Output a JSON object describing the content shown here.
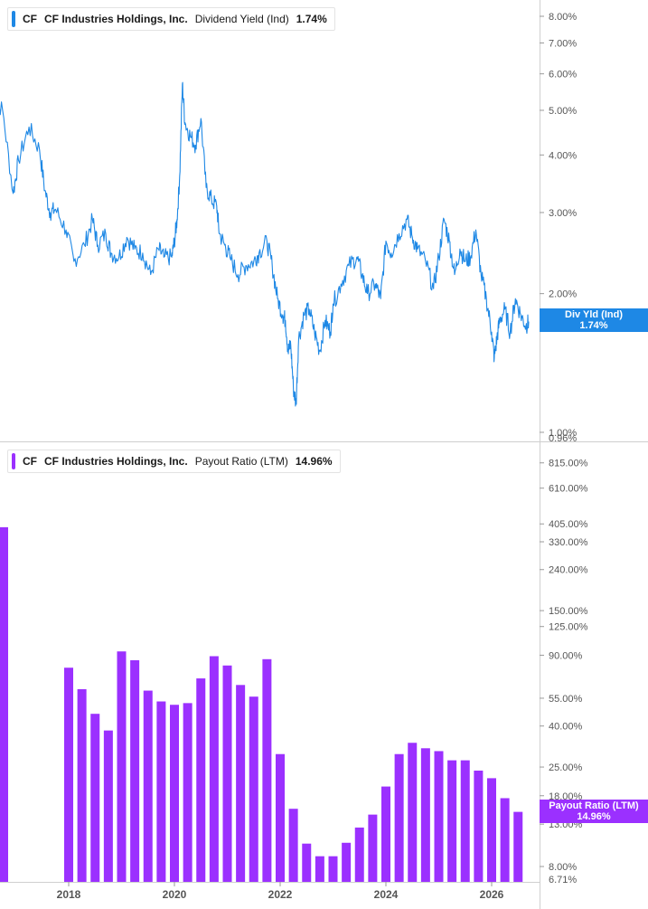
{
  "colors": {
    "blue": "#1e88e5",
    "purple": "#9b30ff",
    "grid": "#dcdcdc",
    "axis_text": "#555555"
  },
  "legend_top": {
    "ticker": "CF",
    "company": "CF Industries Holdings, Inc.",
    "metric": "Dividend Yield (Ind)",
    "value": "1.74%"
  },
  "legend_bottom": {
    "ticker": "CF",
    "company": "CF Industries Holdings, Inc.",
    "metric": "Payout Ratio (LTM)",
    "value": "14.96%"
  },
  "tag_top": {
    "label": "Div Yld (Ind)",
    "value": "1.74%"
  },
  "tag_bottom": {
    "label": "Payout Ratio (LTM)",
    "value": "14.96%"
  },
  "chart_data": [
    {
      "type": "line",
      "scale": "log",
      "series": [
        {
          "name": "Dividend Yield (Ind)",
          "color": "#1e88e5",
          "x": [
            2016.55,
            2016.75,
            2016.95,
            2017.05,
            2017.25,
            2017.45,
            2017.55,
            2017.65,
            2017.75,
            2017.95,
            2018.1,
            2018.3,
            2018.45,
            2018.55,
            2018.7,
            2018.8,
            2018.95,
            2019.1,
            2019.25,
            2019.4,
            2019.55,
            2019.7,
            2019.8,
            2019.95,
            2020.0,
            2020.05,
            2020.1,
            2020.15,
            2020.2,
            2020.3,
            2020.4,
            2020.5,
            2020.6,
            2020.7,
            2020.8,
            2020.85,
            2020.95,
            2021.05,
            2021.2,
            2021.35,
            2021.5,
            2021.6,
            2021.75,
            2021.85,
            2021.95,
            2022.05,
            2022.1,
            2022.15,
            2022.2,
            2022.25,
            2022.3,
            2022.35,
            2022.45,
            2022.55,
            2022.65,
            2022.75,
            2022.85,
            2022.95,
            2023.0,
            2023.15,
            2023.3,
            2023.45,
            2023.55,
            2023.65,
            2023.8,
            2023.9,
            2024.0,
            2024.1,
            2024.25,
            2024.4,
            2024.5,
            2024.6,
            2024.75,
            2024.9,
            2025.0,
            2025.1,
            2025.2,
            2025.3,
            2025.4,
            2025.5,
            2025.6,
            2025.7,
            2025.8,
            2025.9,
            2026.0,
            2026.05,
            2026.1,
            2026.15,
            2026.25,
            2026.35,
            2026.45,
            2026.55,
            2026.65,
            2026.7
          ],
          "values": [
            5.4,
            5.0,
            3.3,
            3.9,
            4.6,
            4.1,
            3.35,
            3.0,
            3.05,
            2.75,
            2.35,
            2.55,
            2.9,
            2.55,
            2.7,
            2.45,
            2.4,
            2.65,
            2.5,
            2.45,
            2.2,
            2.5,
            2.4,
            2.4,
            2.6,
            2.9,
            3.6,
            5.7,
            4.7,
            4.4,
            4.2,
            4.8,
            3.4,
            3.2,
            3.1,
            2.7,
            2.55,
            2.4,
            2.2,
            2.3,
            2.35,
            2.45,
            2.6,
            2.3,
            1.95,
            1.8,
            1.75,
            1.5,
            1.55,
            1.25,
            1.15,
            1.6,
            1.8,
            1.85,
            1.65,
            1.5,
            1.75,
            1.65,
            1.9,
            2.1,
            2.3,
            2.4,
            2.2,
            2.0,
            2.1,
            1.95,
            2.6,
            2.45,
            2.7,
            2.9,
            2.65,
            2.5,
            2.35,
            2.05,
            2.4,
            2.9,
            2.6,
            2.2,
            2.5,
            2.35,
            2.4,
            2.75,
            2.2,
            1.95,
            1.65,
            1.45,
            1.6,
            1.75,
            1.85,
            1.65,
            1.95,
            1.8,
            1.7,
            1.74
          ]
        }
      ],
      "y_ticks": [
        8,
        7,
        6,
        5,
        4,
        3,
        2,
        1
      ],
      "y_tick_labels": [
        "8.00%",
        "7.00%",
        "6.00%",
        "5.00%",
        "4.00%",
        "3.00%",
        "2.00%",
        "1.00%"
      ],
      "y_extra_label": "0.96%",
      "ylim": [
        0.96,
        8.6
      ]
    },
    {
      "type": "bar",
      "scale": "log",
      "series": [
        {
          "name": "Payout Ratio (LTM)",
          "color": "#9b30ff",
          "x": [
            2016.75,
            2018.0,
            2018.25,
            2018.5,
            2018.75,
            2019.0,
            2019.25,
            2019.5,
            2019.75,
            2020.0,
            2020.25,
            2020.5,
            2020.75,
            2021.0,
            2021.25,
            2021.5,
            2021.75,
            2022.0,
            2022.25,
            2022.5,
            2022.75,
            2023.0,
            2023.25,
            2023.5,
            2023.75,
            2024.0,
            2024.25,
            2024.5,
            2024.75,
            2025.0,
            2025.25,
            2025.5,
            2025.75,
            2026.0,
            2026.25,
            2026.5
          ],
          "values": [
            390,
            78,
            61,
            46,
            38,
            94,
            85,
            60,
            53,
            51,
            52,
            69,
            89,
            80,
            64,
            56,
            86,
            29,
            15.5,
            10.4,
            9.0,
            9.0,
            10.5,
            12.5,
            14.5,
            20,
            29,
            33,
            31,
            30,
            27,
            27,
            24,
            22,
            17.5,
            14.96
          ]
        }
      ],
      "y_ticks": [
        815,
        610,
        405,
        330,
        240,
        150,
        125,
        90,
        55,
        40,
        25,
        18,
        13,
        8
      ],
      "y_tick_labels": [
        "815.00%",
        "610.00%",
        "405.00%",
        "330.00%",
        "240.00%",
        "150.00%",
        "125.00%",
        "90.00%",
        "55.00%",
        "40.00%",
        "25.00%",
        "18.00%",
        "13.00%",
        "8.00%"
      ],
      "y_extra_label": "6.71%",
      "ylim": [
        6.71,
        1000
      ]
    }
  ],
  "x_axis": {
    "ticks": [
      2018,
      2020,
      2022,
      2024,
      2026
    ],
    "labels": [
      "2018",
      "2020",
      "2022",
      "2024",
      "2026"
    ]
  }
}
